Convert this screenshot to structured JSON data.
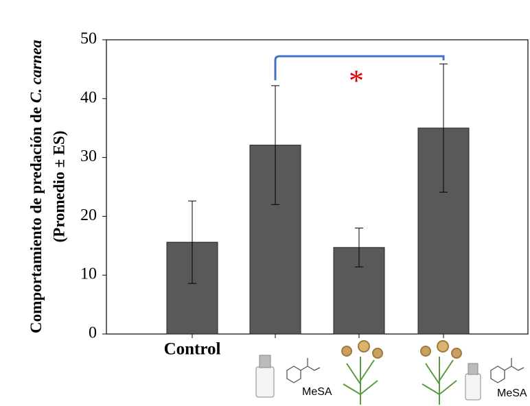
{
  "chart_data": {
    "type": "bar",
    "ylabel_line1": "Comportamiento de predación de",
    "ylabel_italic": "C. carnea",
    "ylabel_line2": "(Promedio ± ES)",
    "categories": [
      "Control",
      null,
      null,
      null
    ],
    "values": [
      15.6,
      32.1,
      14.7,
      35.0
    ],
    "errors": [
      7.0,
      10.1,
      3.3,
      10.9
    ],
    "color": "#595959",
    "ylim": [
      0,
      50
    ],
    "yticks": [
      0,
      10,
      20,
      30,
      40,
      50
    ],
    "annotation": "*",
    "icon_labels": [
      "MeSA",
      "MeSA"
    ]
  }
}
